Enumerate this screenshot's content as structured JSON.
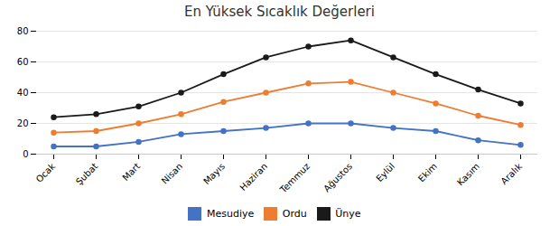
{
  "chart_data": {
    "type": "line",
    "title": "En Yüksek Sıcaklık Değerleri",
    "categories": [
      "Ocak",
      "Şubat",
      "Mart",
      "Nisan",
      "Mayıs",
      "Haziran",
      "Temmuz",
      "Ağustos",
      "Eylül",
      "Ekim",
      "Kasım",
      "Aralık"
    ],
    "series": [
      {
        "name": "Mesudiye",
        "color": "#4472c4",
        "values": [
          5,
          5,
          8,
          13,
          15,
          17,
          20,
          20,
          17,
          15,
          9,
          6
        ]
      },
      {
        "name": "Ordu",
        "color": "#ed7d31",
        "values": [
          14,
          15,
          20,
          26,
          34,
          40,
          46,
          47,
          40,
          33,
          25,
          19
        ]
      },
      {
        "name": "Ünye",
        "color": "#1a1a1a",
        "values": [
          24,
          26,
          31,
          40,
          52,
          63,
          70,
          74,
          63,
          52,
          42,
          33
        ]
      }
    ],
    "ylim": [
      0,
      80
    ],
    "yticks": [
      0,
      20,
      40,
      60,
      80
    ],
    "grid": true,
    "legend": "bottom",
    "marker": "circle"
  }
}
